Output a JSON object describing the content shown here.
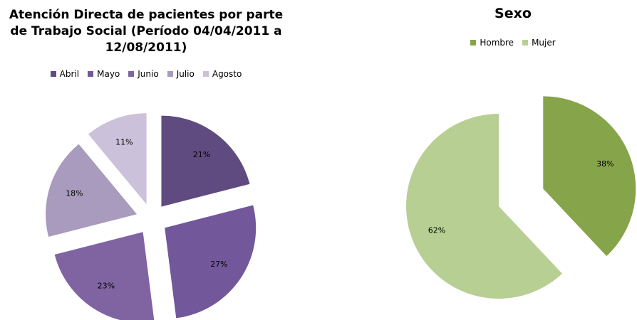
{
  "chart_data": [
    {
      "type": "pie",
      "title": "Atención Directa de pacientes por parte de Trabajo Social (Período 04/04/2011 a 12/08/2011)",
      "categories": [
        "Abril",
        "Mayo",
        "Junio",
        "Julio",
        "Agosto"
      ],
      "values": [
        21,
        27,
        23,
        18,
        11
      ],
      "value_labels": [
        "21%",
        "27%",
        "23%",
        "18%",
        "11%"
      ],
      "colors": [
        "#5f4b7f",
        "#72589a",
        "#8064a2",
        "#a99bbd",
        "#ccc1da"
      ],
      "legend": "top"
    },
    {
      "type": "pie",
      "title": "Sexo",
      "categories": [
        "Hombre",
        "Mujer"
      ],
      "values": [
        38,
        62
      ],
      "value_labels": [
        "38%",
        "62%"
      ],
      "colors": [
        "#86a44a",
        "#b8cf93"
      ],
      "legend": "top"
    }
  ]
}
